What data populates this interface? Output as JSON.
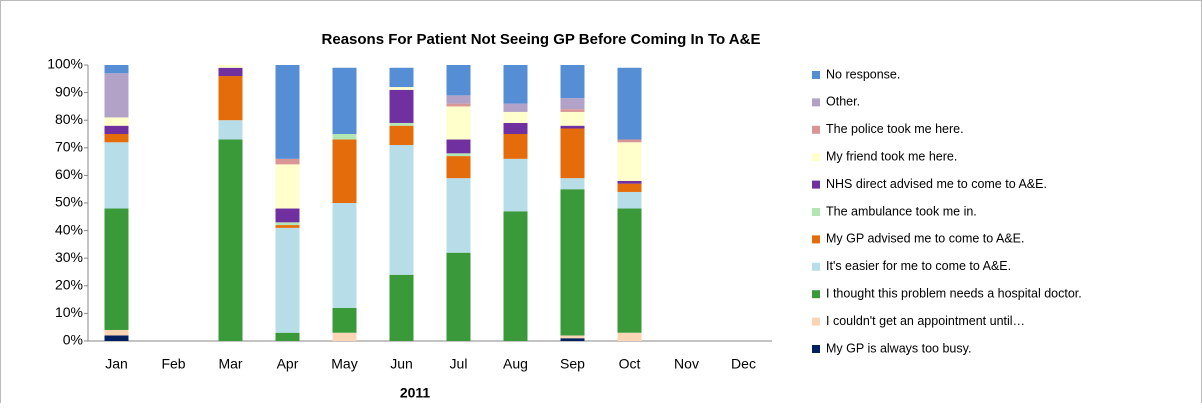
{
  "chart_data": {
    "type": "stacked_bar",
    "title": "Reasons For Patient Not Seeing GP Before Coming In To A&E",
    "xlabel": "2011",
    "categories": [
      "Jan",
      "Feb",
      "Mar",
      "Apr",
      "May",
      "Jun",
      "Jul",
      "Aug",
      "Sep",
      "Oct",
      "Nov",
      "Dec"
    ],
    "ylim": [
      0,
      100
    ],
    "yticks": [
      {
        "value": 0,
        "label": "0%"
      },
      {
        "value": 10,
        "label": "10%"
      },
      {
        "value": 20,
        "label": "20%"
      },
      {
        "value": 30,
        "label": "30%"
      },
      {
        "value": 40,
        "label": "40%"
      },
      {
        "value": 50,
        "label": "50%"
      },
      {
        "value": 60,
        "label": "60%"
      },
      {
        "value": 70,
        "label": "70%"
      },
      {
        "value": 80,
        "label": "80%"
      },
      {
        "value": 90,
        "label": "90%"
      },
      {
        "value": 100,
        "label": "100%"
      }
    ],
    "legend": "right",
    "series": [
      {
        "name": "My GP is always too busy.",
        "color": "#002060",
        "values": [
          2,
          0,
          0,
          0,
          0,
          0,
          0,
          0,
          1,
          0,
          0,
          0
        ]
      },
      {
        "name": "I couldn't get an appointment until…",
        "color": "#fcd5b5",
        "values": [
          2,
          0,
          0,
          0,
          3,
          0,
          0,
          0,
          1,
          3,
          0,
          0
        ]
      },
      {
        "name": "I thought this problem needs a hospital doctor.",
        "color": "#3a9a3a",
        "values": [
          44,
          0,
          73,
          3,
          9,
          24,
          32,
          47,
          53,
          45,
          0,
          0
        ]
      },
      {
        "name": "It's easier for me to come to A&E.",
        "color": "#b7dde8",
        "values": [
          24,
          0,
          7,
          38,
          38,
          47,
          27,
          19,
          4,
          6,
          0,
          0
        ]
      },
      {
        "name": "My GP advised me to come to A&E.",
        "color": "#e46c0a",
        "values": [
          3,
          0,
          16,
          1,
          23,
          7,
          8,
          9,
          18,
          3,
          0,
          0
        ]
      },
      {
        "name": "The ambulance took me in.",
        "color": "#b3e6b3",
        "values": [
          0,
          0,
          0,
          1,
          2,
          1,
          1,
          0,
          0,
          0,
          0,
          0
        ]
      },
      {
        "name": "NHS direct advised me to come to A&E.",
        "color": "#7030a0",
        "values": [
          3,
          0,
          3,
          5,
          0,
          12,
          5,
          4,
          1,
          1,
          0,
          0
        ]
      },
      {
        "name": "My friend took me here.",
        "color": "#ffffcc",
        "values": [
          3,
          0,
          1,
          16,
          0,
          1,
          12,
          4,
          5,
          14,
          0,
          0
        ]
      },
      {
        "name": "The police took me here.",
        "color": "#d99694",
        "values": [
          0,
          0,
          0,
          2,
          0,
          0,
          1,
          0,
          1,
          1,
          0,
          0
        ]
      },
      {
        "name": "Other.",
        "color": "#b3a2c7",
        "values": [
          16,
          0,
          0,
          0,
          0,
          0,
          3,
          3,
          4,
          0,
          0,
          0
        ]
      },
      {
        "name": "No response.",
        "color": "#558ed5",
        "values": [
          3,
          0,
          0,
          34,
          24,
          7,
          11,
          14,
          12,
          26,
          0,
          0
        ]
      }
    ]
  }
}
